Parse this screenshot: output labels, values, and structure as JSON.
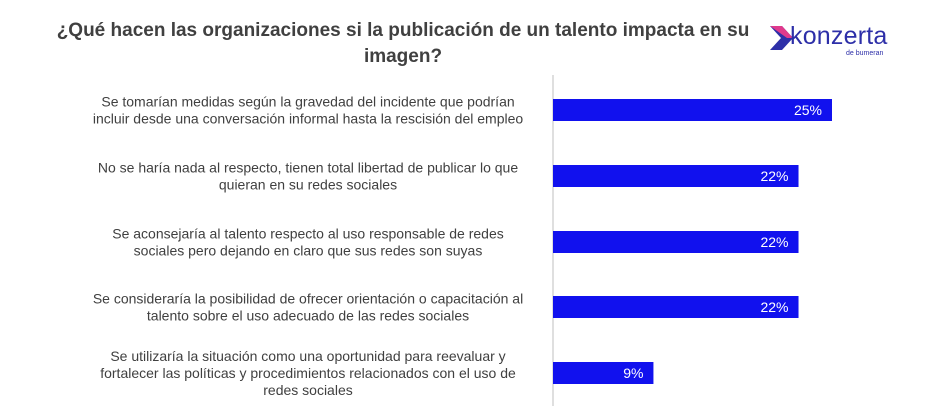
{
  "title": "¿Qué hacen las organizaciones si la publicación de un talento impacta en su imagen?",
  "logo": {
    "name": "konzerta",
    "tagline": "de bumeran",
    "icon": "chevron-logo-icon"
  },
  "colors": {
    "bar": "#1111ee",
    "text": "#404040",
    "axis": "#bfbfbf",
    "brand": "#2d2fa8"
  },
  "chart_data": {
    "type": "bar",
    "orientation": "horizontal",
    "categories": [
      [
        "Se tomarían medidas según la gravedad del incidente que podrían",
        "incluir desde una conversación informal hasta la rescisión del empleo"
      ],
      [
        "No se haría nada al respecto, tienen total libertad de publicar lo que",
        "quieran en su redes sociales"
      ],
      [
        "Se aconsejaría al talento respecto al uso responsable de redes",
        "sociales pero dejando en claro que sus redes son suyas"
      ],
      [
        "Se consideraría la posibilidad de ofrecer orientación o capacitación al",
        "talento sobre el uso adecuado de las redes sociales"
      ],
      [
        "Se utilizaría la situación como una oportunidad para reevaluar y",
        "fortalecer las políticas y procedimientos relacionados con el uso de",
        "redes sociales"
      ]
    ],
    "values": [
      25,
      22,
      22,
      22,
      9
    ],
    "value_labels": [
      "25%",
      "22%",
      "22%",
      "22%",
      "9%"
    ],
    "xlim": [
      0,
      32
    ],
    "grid": false
  }
}
